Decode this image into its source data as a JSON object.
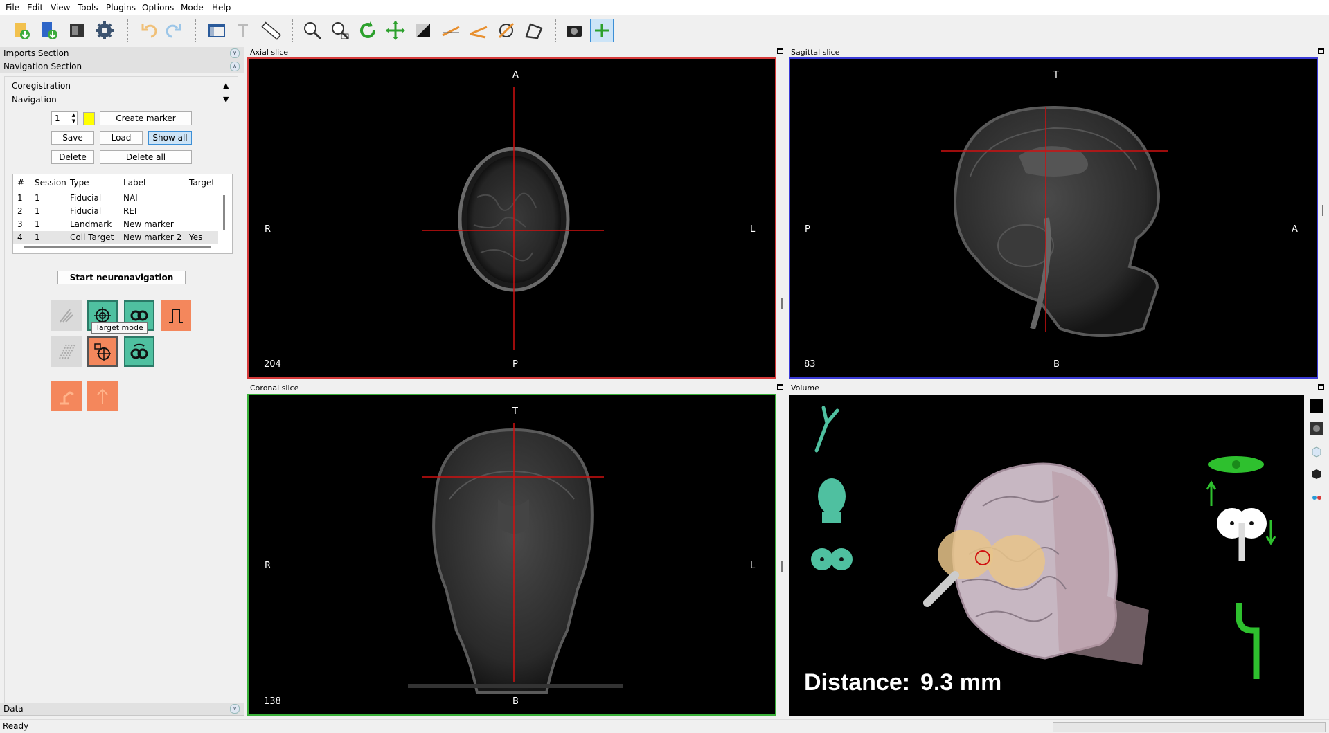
{
  "menu": [
    "File",
    "Edit",
    "View",
    "Tools",
    "Plugins",
    "Options",
    "Mode",
    "Help"
  ],
  "toolbar": {
    "icons": [
      "import-icon",
      "import-surface-icon",
      "open-project-icon",
      "settings-icon",
      "undo-icon",
      "redo-icon",
      "layout-icon",
      "text-icon",
      "ruler-icon",
      "zoom-in-icon",
      "zoom-select-icon",
      "rotate-icon",
      "pan-icon",
      "contrast-icon",
      "linear-measure-icon",
      "angular-measure-icon",
      "ellipse-measure-icon",
      "polygon-measure-icon",
      "screenshot-icon",
      "add-icon"
    ]
  },
  "left": {
    "imports_section": "Imports Section",
    "navigation_section": "Navigation Section",
    "coregistration": "Coregistration",
    "navigation": "Navigation",
    "marker_index": "1",
    "create_marker": "Create marker",
    "save": "Save",
    "load": "Load",
    "show_all": "Show all",
    "delete": "Delete",
    "delete_all": "Delete all",
    "table": {
      "headers": [
        "#",
        "Session",
        "Type",
        "Label",
        "Target"
      ],
      "rows": [
        {
          "n": "1",
          "session": "1",
          "type": "Fiducial",
          "label": "NAI",
          "target": ""
        },
        {
          "n": "2",
          "session": "1",
          "type": "Fiducial",
          "label": "REI",
          "target": ""
        },
        {
          "n": "3",
          "session": "1",
          "type": "Landmark",
          "label": "New marker",
          "target": ""
        },
        {
          "n": "4",
          "session": "1",
          "type": "Coil Target",
          "label": "New marker 2",
          "target": "Yes"
        }
      ]
    },
    "start_navigation": "Start neuronavigation",
    "tooltip": "Target mode",
    "data_section": "Data"
  },
  "views": {
    "axial": {
      "title": "Axial slice",
      "top": "A",
      "bottom": "P",
      "left": "R",
      "right": "L",
      "slice": "204"
    },
    "sagittal": {
      "title": "Sagittal slice",
      "top": "T",
      "bottom": "B",
      "left": "P",
      "right": "A",
      "slice": "83"
    },
    "coronal": {
      "title": "Coronal slice",
      "top": "T",
      "bottom": "B",
      "left": "R",
      "right": "L",
      "slice": "138"
    },
    "volume": {
      "title": "Volume",
      "distance_label": "Distance:",
      "distance_value": "9.3 mm"
    }
  },
  "status": {
    "text": "Ready"
  },
  "colors": {
    "axial_border": "#d63a3a",
    "sagittal_border": "#3a3ad6",
    "coronal_border": "#3ab03a",
    "accent_green": "#4fc0a0",
    "accent_orange": "#f4875c"
  }
}
